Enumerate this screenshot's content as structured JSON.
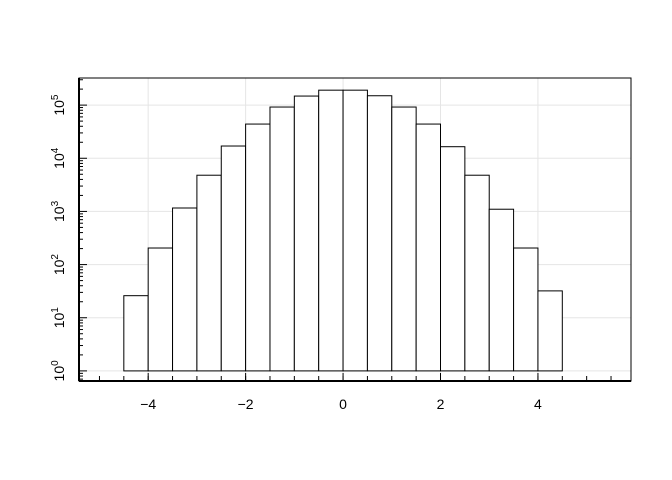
{
  "chart_data": {
    "type": "bar",
    "subtype": "histogram",
    "title": "",
    "xlabel": "",
    "ylabel": "",
    "y_scale": "log10",
    "xlim": [
      -5.42,
      5.91
    ],
    "ylim_log10": [
      -0.19,
      5.51
    ],
    "grid": true,
    "x_ticks": [
      -4,
      -2,
      0,
      2,
      4
    ],
    "x_tick_labels": [
      "−4",
      "−2",
      "0",
      "2",
      "4"
    ],
    "y_ticks": [
      1,
      10,
      100,
      1000,
      10000,
      100000
    ],
    "y_tick_labels": [
      {
        "base": "10",
        "exp": "0"
      },
      {
        "base": "10",
        "exp": "1"
      },
      {
        "base": "10",
        "exp": "2"
      },
      {
        "base": "10",
        "exp": "3"
      },
      {
        "base": "10",
        "exp": "4"
      },
      {
        "base": "10",
        "exp": "5"
      }
    ],
    "bin_edges": [
      -5,
      -4.5,
      -4,
      -3.5,
      -3,
      -2.5,
      -2,
      -1.5,
      -1,
      -0.5,
      0,
      0.5,
      1,
      1.5,
      2,
      2.5,
      3,
      3.5,
      4,
      4.5,
      5,
      5.5
    ],
    "values": [
      1,
      26,
      205,
      1160,
      4800,
      17000,
      44000,
      92000,
      148000,
      191000,
      191000,
      150000,
      92000,
      44000,
      16500,
      4800,
      1100,
      205,
      32,
      1,
      1
    ],
    "colors": {
      "bar_fill": "#ffffff",
      "bar_stroke": "#000000",
      "grid": "#e5e5e5"
    }
  }
}
